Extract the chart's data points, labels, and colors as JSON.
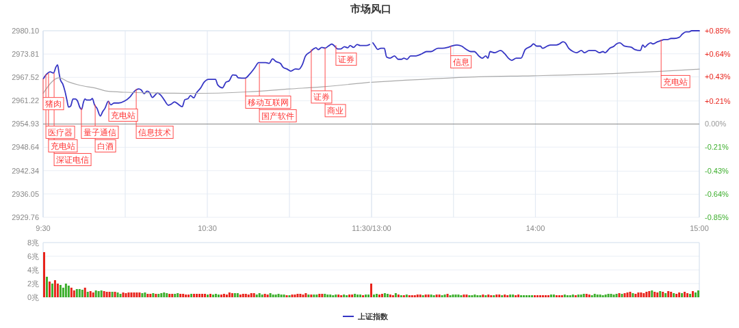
{
  "chart_data": [
    {
      "type": "line",
      "title": "市场风口",
      "xlim": [
        9.5,
        11.5
      ],
      "xticks": [
        {
          "value": 9.5,
          "label": "9:30"
        },
        {
          "value": 10,
          "label": null
        },
        {
          "value": 10.5,
          "label": "10:30"
        },
        {
          "value": 11,
          "label": null
        },
        {
          "value": 11.5,
          "label": "11:30/13:00"
        }
      ],
      "ylim": [
        2929.76,
        2980.1
      ],
      "yticks": [
        2929.76,
        2936.05,
        2942.34,
        2948.64,
        2954.93,
        2961.22,
        2967.52,
        2973.81,
        {
          "value": 2980.1,
          "label": "2980.10"
        }
      ],
      "grid": true,
      "legend": "bottom",
      "ref_lines": [
        {
          "axis": "y",
          "value": 2954.93,
          "color": "#888888"
        }
      ],
      "series": [
        {
          "name": "上证指数",
          "color": "#3434c4",
          "x": [
            9.502,
            9.522,
            9.543,
            9.563,
            9.578,
            9.588,
            9.597,
            9.605,
            9.62,
            9.633,
            9.645,
            9.655,
            9.668,
            9.682,
            9.697,
            9.71,
            9.723,
            9.735,
            9.745,
            9.755,
            9.765,
            9.787,
            9.8,
            9.813,
            9.828,
            9.848,
            9.863,
            9.877,
            9.897,
            9.912,
            9.932,
            9.96,
            9.995,
            10.03,
            10.057,
            10.082,
            10.098,
            10.115,
            10.133,
            10.147,
            10.165,
            10.197,
            10.217,
            10.238,
            10.263,
            10.28,
            10.3,
            10.322,
            10.347,
            10.363,
            10.383,
            10.397,
            10.418,
            10.432,
            10.46,
            10.48,
            10.508,
            10.55,
            10.563,
            10.592,
            10.613,
            10.633,
            10.655,
            10.675,
            10.688,
            10.73,
            10.758,
            10.787,
            10.813,
            10.855,
            10.877,
            10.897,
            10.918,
            10.947,
            10.96,
            10.988,
            11.008,
            11.037,
            11.057,
            11.078,
            11.098,
            11.127,
            11.147,
            11.162,
            11.175,
            11.197,
            11.217,
            11.238,
            11.258,
            11.272,
            11.293,
            11.313,
            11.335,
            11.355,
            11.37,
            11.39,
            11.412,
            11.432,
            11.467,
            11.488
          ],
          "values": [
            2967.2,
            2968.4,
            2969.0,
            2968.7,
            2970.3,
            2970.9,
            2968.7,
            2966.9,
            2965.7,
            2963.8,
            2961.4,
            2959.5,
            2959.8,
            2961.7,
            2961.7,
            2961.1,
            2959.5,
            2958.9,
            2960.7,
            2961.7,
            2961.4,
            2961.4,
            2961.8,
            2960.1,
            2959.2,
            2957.1,
            2958.3,
            2959.2,
            2961.1,
            2960.1,
            2960.6,
            2960.6,
            2961.1,
            2962.3,
            2963.8,
            2964.4,
            2964.1,
            2963.1,
            2963.8,
            2963.5,
            2962.1,
            2963.3,
            2962.7,
            2961.4,
            2960.0,
            2960.3,
            2960.9,
            2960.3,
            2959.6,
            2961.5,
            2961.8,
            2962.6,
            2962.0,
            2963.2,
            2964.7,
            2966.2,
            2967.0,
            2967.0,
            2965.5,
            2964.7,
            2966.2,
            2966.6,
            2968.2,
            2968.1,
            2967.4,
            2967.3,
            2968.4,
            2970.0,
            2971.5,
            2971.5,
            2971.3,
            2972.5,
            2971.8,
            2971.2,
            2970.3,
            2969.7,
            2969.2,
            2969.8,
            2969.7,
            2970.9,
            2973.3,
            2974.4,
            2975.2,
            2975.5,
            2975.0,
            2975.6,
            2975.4,
            2976.0,
            2976.5,
            2976.1,
            2975.2,
            2975.2,
            2975.8,
            2975.5,
            2976.1,
            2975.6,
            2976.4,
            2976.1,
            2976.1,
            2976.4
          ]
        },
        {
          "color": "#aaaaaa",
          "x": [
            9.5,
            9.597,
            9.655,
            9.723,
            9.822,
            9.89,
            10.002,
            10.21,
            10.418,
            10.738,
            11.002,
            11.21,
            11.488
          ],
          "values": [
            2963.2,
            2967.4,
            2966.3,
            2965.4,
            2964.6,
            2963.8,
            2963.5,
            2963.3,
            2963.2,
            2963.6,
            2964.4,
            2965.0,
            2966.2
          ]
        }
      ],
      "annotations": [
        {
          "text": "猪肉",
          "x": 9.5,
          "y": 2967.2
        },
        {
          "text": "医疗器",
          "x": 9.517,
          "y": 2968.4
        },
        {
          "text": "充电站",
          "x": 9.533,
          "y": 2968.7
        },
        {
          "text": "深证电信",
          "x": 9.567,
          "y": 2968.7
        },
        {
          "text": "量子通信",
          "x": 9.733,
          "y": 2959.3
        },
        {
          "text": "白酒",
          "x": 9.817,
          "y": 2960.2
        },
        {
          "text": "充电站",
          "x": 9.9,
          "y": 2961.1
        },
        {
          "text": "信息技术",
          "x": 10.067,
          "y": 2964.4
        },
        {
          "text": "移动互联网",
          "x": 10.733,
          "y": 2967.2
        },
        {
          "text": "国产软件",
          "x": 10.817,
          "y": 2971.2
        },
        {
          "text": "证券",
          "x": 11.133,
          "y": 2975.1
        },
        {
          "text": "商业",
          "x": 11.217,
          "y": 2975.5
        },
        {
          "text": "证券",
          "x": 11.283,
          "y": 2976.2
        }
      ]
    },
    {
      "type": "line",
      "xlim": [
        13,
        15
      ],
      "xticks": [
        {
          "value": 13,
          "label": null
        },
        {
          "value": 13.5,
          "label": null
        },
        {
          "value": 14,
          "label": "14:00"
        },
        {
          "value": 14.5,
          "label": null
        },
        {
          "value": 15,
          "label": "15:00"
        }
      ],
      "ylim": [
        -0.85,
        0.85
      ],
      "yticks": [
        {
          "value": -0.85,
          "label": "-0.85%"
        },
        {
          "value": -0.64,
          "label": "-0.64%"
        },
        {
          "value": -0.43,
          "label": "-0.43%"
        },
        {
          "value": -0.21,
          "label": "-0.21%"
        },
        {
          "value": 0,
          "label": "0.00%"
        },
        {
          "value": 0.21,
          "label": "+0.21%"
        },
        {
          "value": 0.43,
          "label": "+0.43%"
        },
        {
          "value": 0.64,
          "label": "+0.64%"
        },
        {
          "value": 0.85,
          "label": "+0.85%"
        }
      ],
      "grid": true,
      "ref_lines": [
        {
          "axis": "y",
          "value": 0,
          "color": "#888888"
        }
      ],
      "series": [
        {
          "color": "#3434c4",
          "x": [
            13.008,
            13.022,
            13.037,
            13.057,
            13.078,
            13.092,
            13.113,
            13.14,
            13.162,
            13.182,
            13.197,
            13.217,
            13.238,
            13.265,
            13.307,
            13.335,
            13.363,
            13.405,
            13.432,
            13.467,
            13.488,
            13.522,
            13.55,
            13.578,
            13.605,
            13.627,
            13.655,
            13.675,
            13.697,
            13.71,
            13.723,
            13.752,
            13.787,
            13.813,
            13.835,
            13.855,
            13.883,
            13.912,
            13.938,
            13.973,
            13.988,
            14.008,
            14.03,
            14.043,
            14.072,
            14.092,
            14.127,
            14.147,
            14.168,
            14.182,
            14.203,
            14.23,
            14.252,
            14.28,
            14.3,
            14.328,
            14.363,
            14.39,
            14.412,
            14.425,
            14.453,
            14.48,
            14.495,
            14.515,
            14.543,
            14.585,
            14.605,
            14.64,
            14.655,
            14.668,
            14.682,
            14.703,
            14.717,
            14.745,
            14.765,
            14.787,
            14.807,
            14.828,
            14.848,
            14.877,
            14.897,
            14.918,
            14.938,
            14.953,
            15
          ],
          "values": [
            0.74,
            0.71,
            0.68,
            0.69,
            0.69,
            0.61,
            0.6,
            0.62,
            0.59,
            0.59,
            0.6,
            0.59,
            0.62,
            0.62,
            0.64,
            0.66,
            0.66,
            0.69,
            0.69,
            0.7,
            0.71,
            0.72,
            0.71,
            0.68,
            0.66,
            0.66,
            0.62,
            0.6,
            0.62,
            0.6,
            0.66,
            0.65,
            0.67,
            0.64,
            0.6,
            0.58,
            0.6,
            0.6,
            0.68,
            0.71,
            0.73,
            0.71,
            0.71,
            0.69,
            0.71,
            0.72,
            0.72,
            0.73,
            0.75,
            0.74,
            0.69,
            0.66,
            0.65,
            0.67,
            0.65,
            0.67,
            0.67,
            0.65,
            0.66,
            0.65,
            0.69,
            0.71,
            0.73,
            0.74,
            0.71,
            0.7,
            0.68,
            0.67,
            0.72,
            0.7,
            0.72,
            0.74,
            0.73,
            0.75,
            0.76,
            0.77,
            0.77,
            0.78,
            0.78,
            0.79,
            0.82,
            0.84,
            0.84,
            0.85,
            0.85
          ]
        },
        {
          "color": "#aaaaaa",
          "x": [
            13.0,
            13.655,
            13.988,
            14.473,
            14.765,
            15
          ],
          "values": [
            0.38,
            0.43,
            0.44,
            0.46,
            0.48,
            0.5
          ]
        }
      ],
      "annotations": [
        {
          "text": "信息",
          "x": 13.483,
          "y": 0.71
        },
        {
          "text": "充电站",
          "x": 14.767,
          "y": 0.77
        }
      ]
    },
    {
      "type": "bar",
      "tick_labels": "y",
      "grid": "y",
      "ylim": [
        0,
        8
      ],
      "yticks": [
        {
          "value": 0,
          "label": "0兆"
        },
        {
          "value": 2,
          "label": "2兆"
        },
        {
          "value": 4,
          "label": "4兆"
        },
        {
          "value": 6,
          "label": "6兆"
        },
        {
          "value": 8,
          "label": "8兆"
        }
      ],
      "categories": [
        null,
        null,
        null,
        null,
        null,
        null,
        null,
        null,
        null,
        null,
        null,
        null,
        null,
        null,
        null,
        null,
        null,
        null,
        null,
        null,
        null,
        null,
        null,
        null,
        null,
        null,
        null,
        null,
        null,
        null,
        null,
        null,
        null,
        null,
        null,
        null,
        null,
        null,
        null,
        null,
        null,
        null,
        null,
        null,
        null,
        null,
        null,
        null,
        null,
        null,
        null,
        null,
        null,
        null,
        null,
        null,
        null,
        null,
        null,
        null,
        null,
        null,
        null,
        null,
        null,
        null,
        null,
        null,
        null,
        null,
        null,
        null,
        null,
        null,
        null,
        null,
        null,
        null,
        null,
        null,
        null,
        null,
        null,
        null,
        null,
        null,
        null,
        null,
        null,
        null,
        null,
        null,
        null,
        null,
        null,
        null,
        null,
        null,
        null,
        null,
        null,
        null,
        null,
        null,
        null,
        null,
        null,
        null,
        null,
        null,
        null,
        null,
        null,
        null,
        null,
        null,
        null,
        null,
        null,
        null,
        null,
        null,
        null,
        null,
        null,
        null,
        null,
        null,
        null,
        null,
        null,
        null,
        null,
        null,
        null,
        null,
        null,
        null,
        null,
        null,
        null,
        null,
        null,
        null,
        null,
        null,
        null,
        null,
        null,
        null,
        null,
        null,
        null,
        null,
        null,
        null,
        null,
        null,
        null,
        null,
        null,
        null,
        null,
        null,
        null,
        null,
        null,
        null,
        null,
        null,
        null,
        null,
        null,
        null,
        null,
        null,
        null,
        null,
        null,
        null,
        null,
        null,
        null,
        null,
        null,
        null,
        null,
        null,
        null,
        null,
        null,
        null,
        null,
        null,
        null,
        null,
        null,
        null,
        null,
        null,
        null,
        null,
        null,
        null,
        null,
        null,
        null,
        null,
        null,
        null,
        null,
        null,
        null,
        null,
        null,
        null,
        null,
        null,
        null,
        null,
        null,
        null,
        null,
        null,
        null,
        null,
        null,
        null,
        null,
        null,
        null,
        null,
        null,
        null,
        null,
        null,
        null,
        null,
        null,
        null,
        null
      ],
      "values": [
        6.6,
        3.0,
        2.3,
        2.0,
        2.5,
        2.0,
        1.8,
        1.4,
        2.0,
        1.7,
        1.4,
        1.0,
        1.2,
        1.2,
        1.1,
        1.4,
        0.8,
        0.9,
        0.7,
        1.0,
        0.9,
        1.0,
        0.9,
        0.8,
        0.8,
        0.8,
        0.8,
        0.7,
        0.5,
        0.7,
        0.6,
        0.7,
        0.7,
        0.7,
        0.7,
        0.7,
        0.6,
        0.7,
        0.5,
        0.5,
        0.6,
        0.5,
        0.5,
        0.6,
        0.7,
        0.6,
        0.5,
        0.5,
        0.5,
        0.6,
        0.5,
        0.5,
        0.4,
        0.4,
        0.5,
        0.5,
        0.5,
        0.5,
        0.5,
        0.5,
        0.4,
        0.5,
        0.4,
        0.5,
        0.4,
        0.4,
        0.5,
        0.4,
        0.7,
        0.6,
        0.6,
        0.6,
        0.4,
        0.5,
        0.5,
        0.4,
        0.6,
        0.6,
        0.4,
        0.6,
        0.4,
        0.5,
        0.4,
        0.6,
        0.4,
        0.4,
        0.5,
        0.4,
        0.4,
        0.3,
        0.3,
        0.4,
        0.4,
        0.5,
        0.5,
        0.4,
        0.6,
        0.4,
        0.4,
        0.4,
        0.4,
        0.5,
        0.5,
        0.5,
        0.4,
        0.4,
        0.3,
        0.4,
        0.4,
        0.3,
        0.4,
        0.3,
        0.4,
        0.4,
        0.5,
        0.4,
        0.4,
        0.3,
        0.4,
        0.4,
        2.0,
        0.4,
        0.5,
        0.4,
        0.5,
        0.6,
        0.5,
        0.4,
        0.3,
        0.6,
        0.4,
        0.3,
        0.3,
        0.4,
        0.3,
        0.3,
        0.3,
        0.4,
        0.4,
        0.3,
        0.4,
        0.4,
        0.4,
        0.3,
        0.4,
        0.4,
        0.3,
        0.4,
        0.5,
        0.3,
        0.4,
        0.4,
        0.4,
        0.3,
        0.4,
        0.4,
        0.3,
        0.3,
        0.4,
        0.3,
        0.3,
        0.4,
        0.3,
        0.4,
        0.3,
        0.3,
        0.4,
        0.4,
        0.3,
        0.4,
        0.3,
        0.4,
        0.4,
        0.3,
        0.4,
        0.3,
        0.3,
        0.3,
        0.3,
        0.3,
        0.3,
        0.3,
        0.3,
        0.3,
        0.3,
        0.3,
        0.4,
        0.4,
        0.3,
        0.3,
        0.3,
        0.4,
        0.3,
        0.3,
        0.4,
        0.3,
        0.4,
        0.4,
        0.5,
        0.5,
        0.4,
        0.3,
        0.5,
        0.4,
        0.4,
        0.3,
        0.4,
        0.5,
        0.5,
        0.4,
        0.5,
        0.6,
        0.5,
        0.6,
        0.7,
        0.8,
        0.6,
        0.5,
        0.7,
        0.7,
        0.6,
        0.8,
        0.9,
        1.0,
        0.8,
        0.7,
        0.9,
        0.8,
        0.6,
        0.9,
        0.8,
        0.6,
        0.5,
        0.7,
        0.6,
        0.8,
        0.6,
        0.5,
        0.9,
        0.7,
        1.0
      ],
      "colors": [
        "#e8231b",
        "#3cae2c",
        "#e8231b",
        "#3cae2c",
        "#e8231b",
        "#e8231b",
        "#3cae2c",
        "#3cae2c",
        "#3cae2c",
        "#3cae2c",
        "#e8231b",
        "#e8231b",
        "#3cae2c",
        "#3cae2c",
        "#3cae2c",
        "#e8231b",
        "#3cae2c",
        "#e8231b",
        "#e8231b",
        "#3cae2c",
        "#3cae2c",
        "#3cae2c",
        "#e8231b",
        "#e8231b",
        "#e8231b",
        "#3cae2c",
        "#e8231b",
        "#3cae2c",
        "#3cae2c",
        "#e8231b",
        "#e8231b",
        "#e8231b",
        "#e8231b",
        "#e8231b",
        "#e8231b",
        "#e8231b",
        "#3cae2c",
        "#3cae2c",
        "#e8231b",
        "#e8231b",
        "#3cae2c",
        "#e8231b",
        "#3cae2c",
        "#3cae2c",
        "#3cae2c",
        "#3cae2c",
        "#e8231b",
        "#e8231b",
        "#3cae2c",
        "#3cae2c",
        "#e8231b",
        "#e8231b",
        "#e8231b",
        "#e8231b",
        "#3cae2c",
        "#e8231b",
        "#e8231b",
        "#e8231b",
        "#e8231b",
        "#e8231b",
        "#3cae2c",
        "#e8231b",
        "#3cae2c",
        "#3cae2c",
        "#3cae2c",
        "#e8231b",
        "#e8231b",
        "#e8231b",
        "#e8231b",
        "#e8231b",
        "#3cae2c",
        "#3cae2c",
        "#e8231b",
        "#e8231b",
        "#e8231b",
        "#e8231b",
        "#e8231b",
        "#e8231b",
        "#3cae2c",
        "#3cae2c",
        "#3cae2c",
        "#e8231b",
        "#e8231b",
        "#3cae2c",
        "#3cae2c",
        "#3cae2c",
        "#3cae2c",
        "#3cae2c",
        "#3cae2c",
        "#e8231b",
        "#3cae2c",
        "#e8231b",
        "#e8231b",
        "#e8231b",
        "#e8231b",
        "#e8231b",
        "#e8231b",
        "#3cae2c",
        "#e8231b",
        "#3cae2c",
        "#3cae2c",
        "#e8231b",
        "#e8231b",
        "#3cae2c",
        "#3cae2c",
        "#3cae2c",
        "#3cae2c",
        "#3cae2c",
        "#e8231b",
        "#e8231b",
        "#3cae2c",
        "#3cae2c",
        "#e8231b",
        "#e8231b",
        "#3cae2c",
        "#3cae2c",
        "#3cae2c",
        "#e8231b",
        "#3cae2c",
        "#3cae2c",
        "#e8231b",
        "#3cae2c",
        "#3cae2c",
        "#e8231b",
        "#e8231b",
        "#3cae2c",
        "#3cae2c",
        "#e8231b",
        "#e8231b",
        "#3cae2c",
        "#e8231b",
        "#3cae2c",
        "#e8231b",
        "#3cae2c",
        "#e8231b",
        "#e8231b",
        "#e8231b",
        "#e8231b",
        "#e8231b",
        "#3cae2c",
        "#e8231b",
        "#e8231b",
        "#3cae2c",
        "#3cae2c",
        "#e8231b",
        "#e8231b",
        "#3cae2c",
        "#3cae2c",
        "#e8231b",
        "#3cae2c",
        "#3cae2c",
        "#3cae2c",
        "#3cae2c",
        "#3cae2c",
        "#e8231b",
        "#e8231b",
        "#3cae2c",
        "#3cae2c",
        "#3cae2c",
        "#3cae2c",
        "#3cae2c",
        "#e8231b",
        "#3cae2c",
        "#e8231b",
        "#e8231b",
        "#3cae2c",
        "#e8231b",
        "#e8231b",
        "#3cae2c",
        "#e8231b",
        "#e8231b",
        "#3cae2c",
        "#3cae2c",
        "#e8231b",
        "#e8231b",
        "#3cae2c",
        "#3cae2c",
        "#3cae2c",
        "#3cae2c",
        "#3cae2c",
        "#e8231b",
        "#e8231b",
        "#e8231b",
        "#e8231b",
        "#e8231b",
        "#e8231b",
        "#3cae2c",
        "#3cae2c",
        "#e8231b",
        "#e8231b",
        "#e8231b",
        "#3cae2c",
        "#3cae2c",
        "#3cae2c",
        "#3cae2c",
        "#e8231b",
        "#3cae2c",
        "#3cae2c",
        "#3cae2c",
        "#e8231b",
        "#e8231b",
        "#3cae2c",
        "#3cae2c",
        "#3cae2c",
        "#3cae2c",
        "#3cae2c",
        "#3cae2c",
        "#3cae2c",
        "#3cae2c",
        "#3cae2c",
        "#3cae2c",
        "#e8231b",
        "#3cae2c",
        "#e8231b",
        "#e8231b",
        "#e8231b",
        "#3cae2c",
        "#e8231b",
        "#e8231b",
        "#e8231b",
        "#e8231b",
        "#e8231b",
        "#e8231b",
        "#3cae2c",
        "#e8231b",
        "#e8231b",
        "#3cae2c",
        "#e8231b",
        "#3cae2c",
        "#e8231b",
        "#e8231b",
        "#3cae2c",
        "#e8231b",
        "#e8231b",
        "#3cae2c",
        "#e8231b",
        "#e8231b",
        "#3cae2c",
        "#e8231b",
        "#3cae2c",
        "#3cae2c"
      ]
    }
  ]
}
